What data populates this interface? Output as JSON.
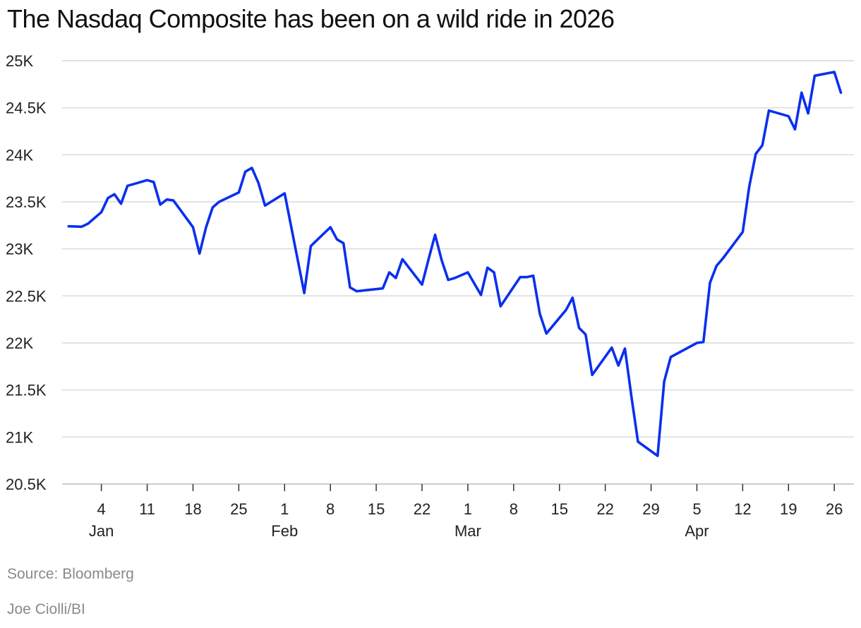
{
  "title": "The Nasdaq Composite has been on a wild ride in 2026",
  "source": "Source: Bloomberg",
  "credit": "Joe Ciolli/BI",
  "colors": {
    "line": "#0a2ff0",
    "grid": "#d9d9d9"
  },
  "chart_data": {
    "type": "line",
    "title": "The Nasdaq Composite has been on a wild ride in 2026",
    "xlabel": "",
    "ylabel": "",
    "ylim": [
      20500,
      25000
    ],
    "yticks": [
      {
        "value": 25000,
        "label": "25K"
      },
      {
        "value": 24500,
        "label": "24.5K"
      },
      {
        "value": 24000,
        "label": "24K"
      },
      {
        "value": 23500,
        "label": "23.5K"
      },
      {
        "value": 23000,
        "label": "23K"
      },
      {
        "value": 22500,
        "label": "22.5K"
      },
      {
        "value": 22000,
        "label": "22K"
      },
      {
        "value": 21500,
        "label": "21.5K"
      },
      {
        "value": 21000,
        "label": "21K"
      },
      {
        "value": 20500,
        "label": "20.5K"
      }
    ],
    "xlim_day_of_year": [
      -2,
      119
    ],
    "xticks": [
      {
        "day": 4,
        "label": "4",
        "month": "Jan"
      },
      {
        "day": 11,
        "label": "11"
      },
      {
        "day": 18,
        "label": "18"
      },
      {
        "day": 25,
        "label": "25"
      },
      {
        "day": 32,
        "label": "1",
        "month": "Feb"
      },
      {
        "day": 39,
        "label": "8"
      },
      {
        "day": 46,
        "label": "15"
      },
      {
        "day": 53,
        "label": "22"
      },
      {
        "day": 60,
        "label": "1",
        "month": "Mar"
      },
      {
        "day": 67,
        "label": "8"
      },
      {
        "day": 74,
        "label": "15"
      },
      {
        "day": 81,
        "label": "22"
      },
      {
        "day": 88,
        "label": "29"
      },
      {
        "day": 95,
        "label": "5",
        "month": "Apr"
      },
      {
        "day": 102,
        "label": "12"
      },
      {
        "day": 109,
        "label": "19"
      },
      {
        "day": 116,
        "label": "26"
      }
    ],
    "series": [
      {
        "name": "Nasdaq Composite",
        "points": [
          [
            -1,
            23240
          ],
          [
            1,
            23235
          ],
          [
            2,
            23270
          ],
          [
            4,
            23390
          ],
          [
            5,
            23540
          ],
          [
            6,
            23580
          ],
          [
            7,
            23480
          ],
          [
            8,
            23670
          ],
          [
            9,
            23690
          ],
          [
            11,
            23730
          ],
          [
            12,
            23710
          ],
          [
            13,
            23470
          ],
          [
            14,
            23525
          ],
          [
            15,
            23515
          ],
          [
            18,
            23230
          ],
          [
            19,
            22950
          ],
          [
            20,
            23230
          ],
          [
            21,
            23440
          ],
          [
            22,
            23500
          ],
          [
            25,
            23600
          ],
          [
            26,
            23820
          ],
          [
            27,
            23860
          ],
          [
            28,
            23700
          ],
          [
            29,
            23460
          ],
          [
            32,
            23590
          ],
          [
            35,
            22530
          ],
          [
            36,
            23030
          ],
          [
            39,
            23230
          ],
          [
            40,
            23100
          ],
          [
            41,
            23060
          ],
          [
            42,
            22590
          ],
          [
            43,
            22550
          ],
          [
            47,
            22580
          ],
          [
            48,
            22750
          ],
          [
            49,
            22690
          ],
          [
            50,
            22890
          ],
          [
            53,
            22620
          ],
          [
            54,
            22890
          ],
          [
            55,
            23150
          ],
          [
            56,
            22880
          ],
          [
            57,
            22670
          ],
          [
            58,
            22690
          ],
          [
            60,
            22750
          ],
          [
            62,
            22510
          ],
          [
            63,
            22800
          ],
          [
            64,
            22750
          ],
          [
            65,
            22390
          ],
          [
            68,
            22700
          ],
          [
            69,
            22700
          ],
          [
            70,
            22715
          ],
          [
            71,
            22310
          ],
          [
            72,
            22100
          ],
          [
            75,
            22350
          ],
          [
            76,
            22480
          ],
          [
            77,
            22160
          ],
          [
            78,
            22090
          ],
          [
            79,
            21660
          ],
          [
            82,
            21950
          ],
          [
            83,
            21760
          ],
          [
            84,
            21940
          ],
          [
            85,
            21430
          ],
          [
            86,
            20950
          ],
          [
            89,
            20800
          ],
          [
            90,
            21590
          ],
          [
            91,
            21850
          ],
          [
            95,
            22000
          ],
          [
            96,
            22010
          ],
          [
            97,
            22640
          ],
          [
            98,
            22820
          ],
          [
            99,
            22900
          ],
          [
            102,
            23180
          ],
          [
            103,
            23660
          ],
          [
            104,
            24010
          ],
          [
            105,
            24100
          ],
          [
            106,
            24470
          ],
          [
            109,
            24410
          ],
          [
            110,
            24270
          ],
          [
            111,
            24660
          ],
          [
            112,
            24440
          ],
          [
            113,
            24840
          ],
          [
            116,
            24880
          ],
          [
            117,
            24660
          ]
        ]
      }
    ]
  }
}
